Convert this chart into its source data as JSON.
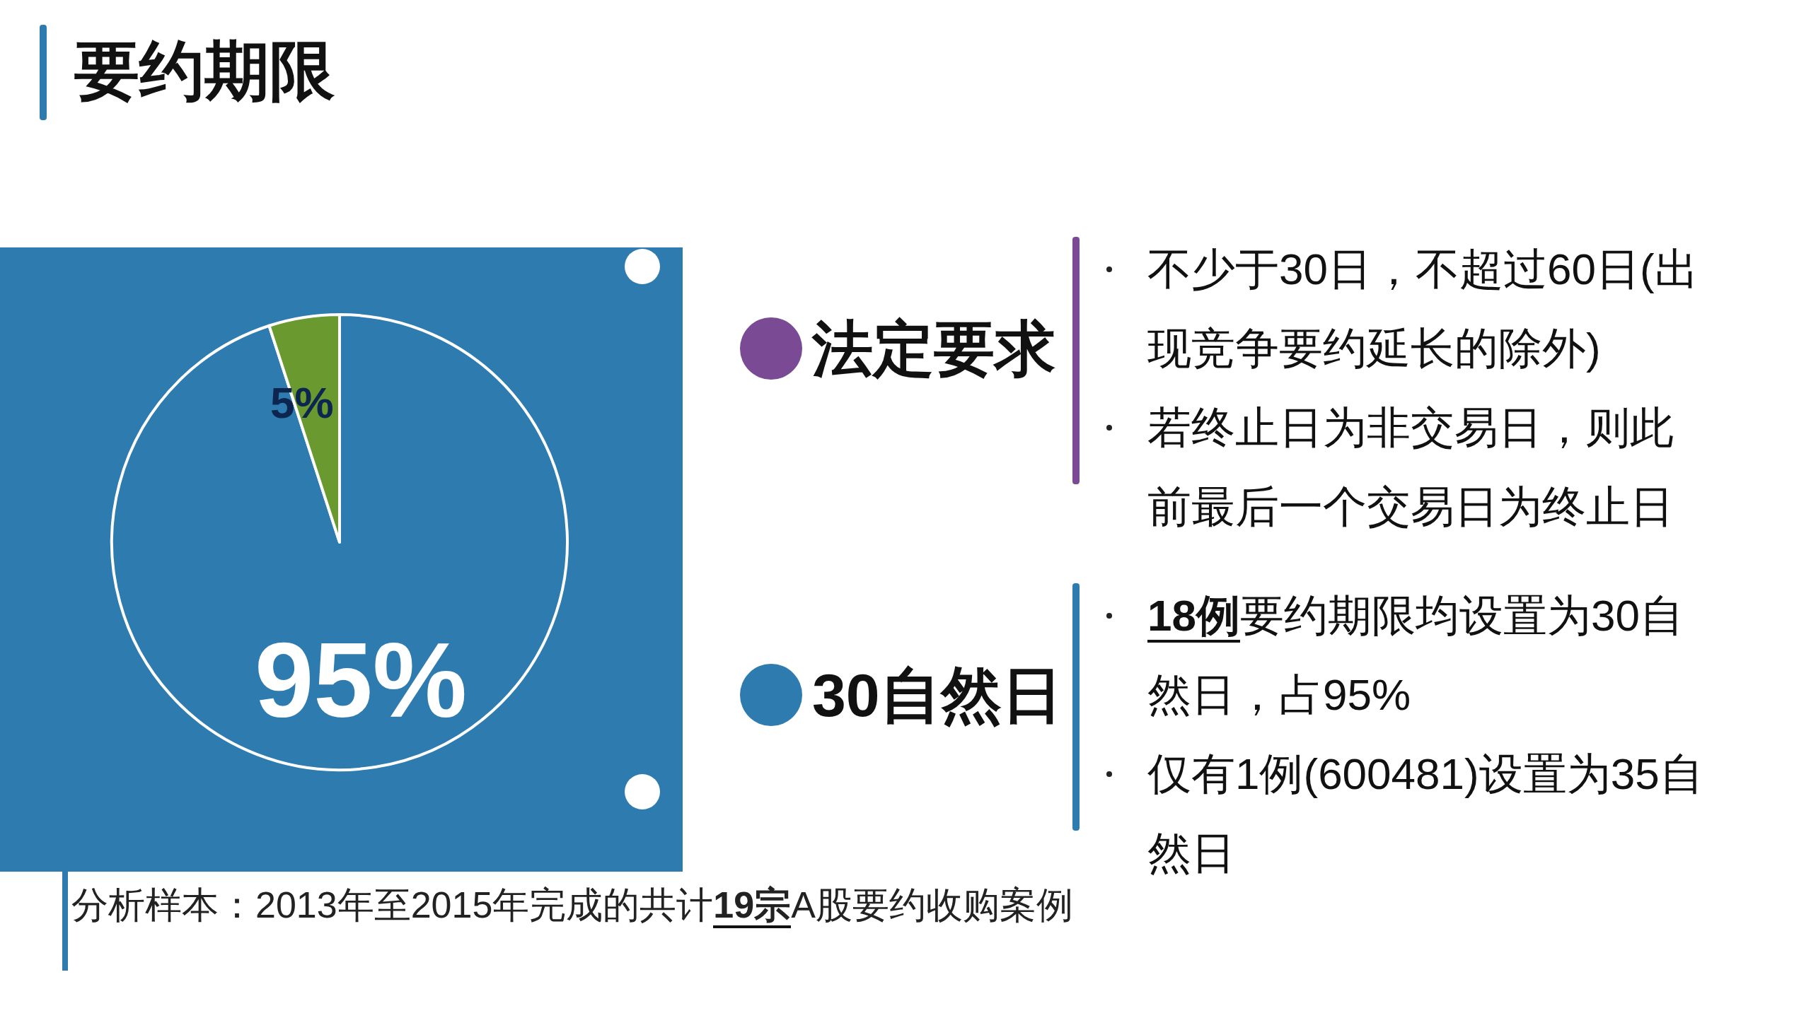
{
  "chart_data": [
    {
      "type": "pie",
      "title": "要约期限",
      "categories": [
        null,
        null
      ],
      "values": [
        95,
        5
      ],
      "colors": [
        "#2e7bb0",
        "#6a9a2f"
      ],
      "value_labels": [
        "95%",
        "5%"
      ],
      "annotations": [
        "分析样本：2013年至2015年完成的共计**19宗**A股要约收购案例"
      ]
    },
    {
      "type": "other",
      "title": "法定要求",
      "annotations": [
        "不少于30日，不超过60日(出现竞争要约延长的除外)",
        "若终止日为非交易日，则此前最后一个交易日为终止日"
      ]
    },
    {
      "type": "other",
      "title": "30自然日",
      "annotations": [
        "**18例**要约期限均设置为30自然日，占95%",
        "仅有1例(600481)设置为35自然日"
      ]
    }
  ]
}
